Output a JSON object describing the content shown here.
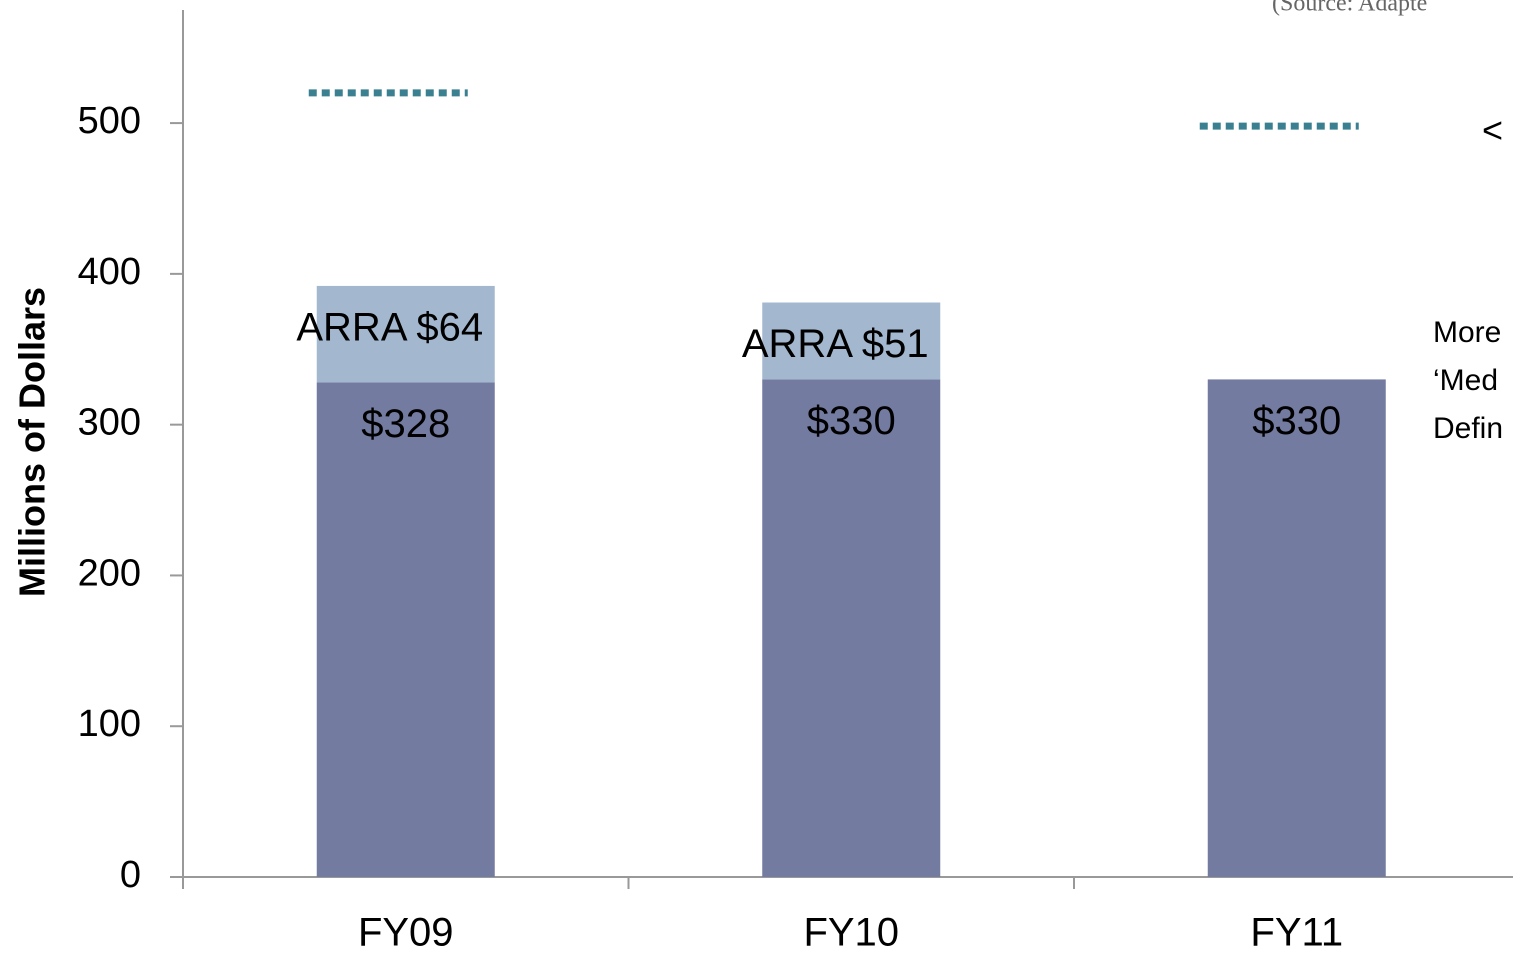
{
  "chart_data": {
    "type": "bar",
    "stacked": true,
    "y_label": "Millions of Dollars",
    "categories": [
      "FY09",
      "FY10",
      "FY11"
    ],
    "series": [
      {
        "color": "#737ba0",
        "values": [
          328,
          330,
          330
        ],
        "value_labels": [
          "$328",
          "$330",
          "$330"
        ]
      },
      {
        "color": "#a3b8cf",
        "values": [
          64,
          51,
          null
        ],
        "value_labels": [
          "ARRA $64",
          "ARRA $51",
          null
        ]
      }
    ],
    "reference_marks": {
      "color": "#3a8090",
      "values": [
        520,
        null,
        498
      ]
    },
    "ylim": [
      0,
      575
    ],
    "yticks": [
      0,
      100,
      200,
      300,
      400,
      500
    ],
    "annotations": [
      "(Source: Adapte",
      "<",
      "More",
      "‘Med",
      "Defin"
    ]
  }
}
